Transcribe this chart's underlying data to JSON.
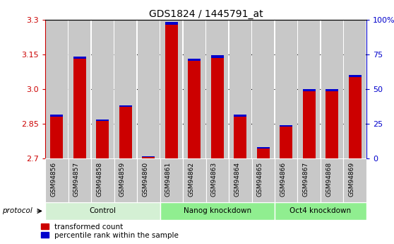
{
  "title": "GDS1824 / 1445791_at",
  "samples": [
    "GSM94856",
    "GSM94857",
    "GSM94858",
    "GSM94859",
    "GSM94860",
    "GSM94861",
    "GSM94862",
    "GSM94863",
    "GSM94864",
    "GSM94865",
    "GSM94866",
    "GSM94867",
    "GSM94868",
    "GSM94869"
  ],
  "red_values": [
    2.89,
    3.14,
    2.87,
    2.93,
    2.71,
    3.29,
    3.13,
    3.145,
    2.89,
    2.75,
    2.845,
    3.0,
    3.0,
    3.06
  ],
  "blue_heights": [
    0.008,
    0.01,
    0.008,
    0.008,
    0.004,
    0.012,
    0.009,
    0.01,
    0.008,
    0.006,
    0.008,
    0.009,
    0.008,
    0.008
  ],
  "ymin": 2.7,
  "ymax": 3.3,
  "yticks_left": [
    2.7,
    2.85,
    3.0,
    3.15,
    3.3
  ],
  "yticks_right_vals": [
    0,
    25,
    50,
    75,
    100
  ],
  "yticks_right_labels": [
    "0",
    "25",
    "50",
    "75",
    "100%"
  ],
  "groups": [
    {
      "label": "Control",
      "start": 0,
      "end": 5,
      "color": "#d4f0d4"
    },
    {
      "label": "Nanog knockdown",
      "start": 5,
      "end": 10,
      "color": "#90ee90"
    },
    {
      "label": "Oct4 knockdown",
      "start": 10,
      "end": 14,
      "color": "#90ee90"
    }
  ],
  "col_bg_color": "#c8c8c8",
  "red_color": "#cc0000",
  "blue_color": "#0000cc",
  "title_color": "#000000",
  "left_axis_color": "#cc0000",
  "right_axis_color": "#0000cc",
  "grid_color": "#000000",
  "legend_red": "transformed count",
  "legend_blue": "percentile rank within the sample",
  "protocol_label": "protocol"
}
